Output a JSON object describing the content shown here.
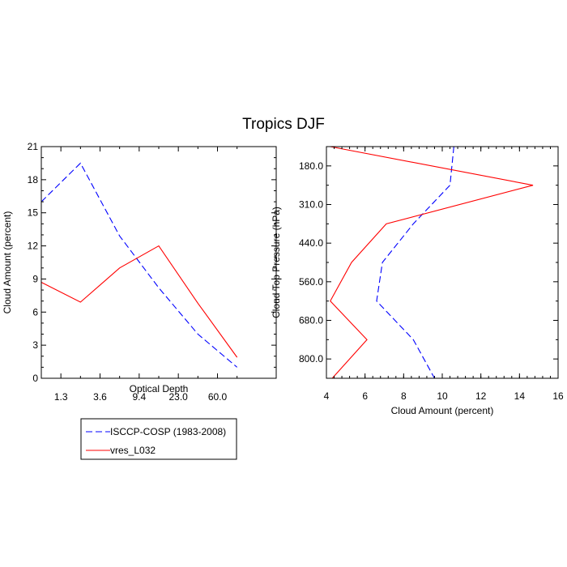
{
  "colors": {
    "isccp": "#0000ff",
    "model": "#ff0000",
    "axis": "#000000"
  },
  "chart_data": {
    "title": "Tropics DJF",
    "series_names": [
      "ISCCP-COSP (1983-2008)",
      "vres_L032"
    ],
    "left": {
      "type": "line",
      "xlabel": "Optical Depth",
      "ylabel": "Cloud Amount (percent)",
      "xtick_labels": [
        "1.3",
        "3.6",
        "9.4",
        "23.0",
        "60.0"
      ],
      "yticks": [
        "0",
        "3",
        "6",
        "9",
        "12",
        "15",
        "18",
        "21"
      ],
      "ylim": [
        0,
        21
      ],
      "x_index_range": [
        0,
        6
      ],
      "series": [
        {
          "name": "ISCCP-COSP (1983-2008)",
          "style": "dashed",
          "x": [
            0,
            1,
            2,
            3,
            4,
            5,
            6
          ],
          "values": [
            16.0,
            19.5,
            12.9,
            8.2,
            4.0,
            1.0,
            null
          ]
        },
        {
          "name": "vres_L032",
          "style": "solid",
          "x": [
            0,
            1,
            2,
            3,
            4,
            5,
            6
          ],
          "values": [
            8.7,
            6.9,
            10.0,
            12.0,
            6.8,
            1.9,
            null
          ]
        }
      ]
    },
    "right": {
      "type": "line",
      "xlabel": "Cloud Amount (percent)",
      "ylabel": "Cloud Top Pressure (hPa)",
      "xticks": [
        "4",
        "6",
        "8",
        "10",
        "12",
        "14",
        "16"
      ],
      "xlim": [
        4,
        16
      ],
      "ytick_labels": [
        "180.0",
        "310.0",
        "440.0",
        "560.0",
        "680.0",
        "800.0"
      ],
      "y_index_range": [
        0,
        6
      ],
      "series": [
        {
          "name": "ISCCP-COSP (1983-2008)",
          "style": "dashed",
          "y": [
            0,
            1,
            2,
            3,
            4,
            5,
            6
          ],
          "values": [
            10.6,
            10.4,
            8.5,
            6.9,
            6.6,
            8.5,
            9.6
          ]
        },
        {
          "name": "vres_L032",
          "style": "solid",
          "y": [
            0,
            1,
            2,
            3,
            4,
            5,
            6
          ],
          "values": [
            4.2,
            14.7,
            7.1,
            5.3,
            4.2,
            6.1,
            4.3
          ]
        }
      ]
    }
  }
}
